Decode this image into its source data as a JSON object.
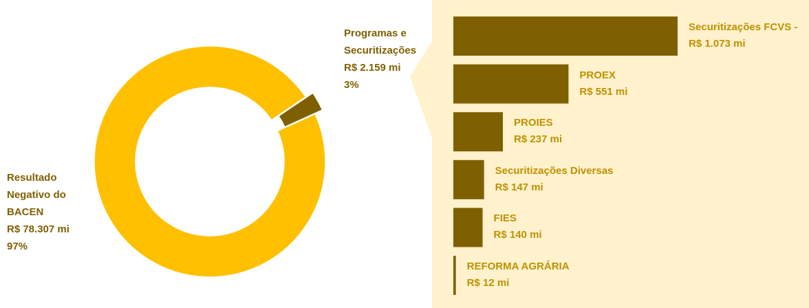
{
  "chart_data": [
    {
      "type": "donut",
      "categories": [
        "Programas e Securitizações",
        "Resultado Negativo do BACEN"
      ],
      "values": [
        2159,
        78307
      ],
      "value_labels": [
        "R$ 2.159 mi",
        "R$ 78.307 mi"
      ],
      "percent_labels": [
        "3%",
        "97%"
      ],
      "colors": [
        "#7f6000",
        "#ffc000"
      ]
    },
    {
      "type": "hbar",
      "categories": [
        "Securitizações FCVS -",
        "PROEX",
        "PROIES",
        "Securitizações Diversas",
        "FIES",
        "REFORMA AGRÁRIA"
      ],
      "values": [
        1073,
        551,
        237,
        147,
        140,
        12
      ],
      "value_labels": [
        "R$ 1.073 mi",
        "R$ 551 mi",
        "R$ 237 mi",
        "R$ 147 mi",
        "R$ 140 mi",
        "R$ 12 mi"
      ],
      "color": "#7f6000"
    }
  ]
}
